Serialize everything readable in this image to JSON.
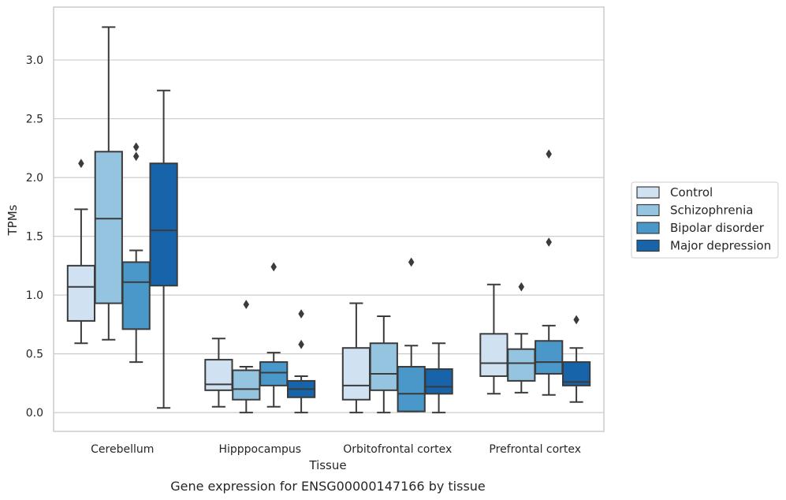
{
  "chart_data": {
    "type": "box",
    "caption": "Gene expression for ENSG00000147166 by tissue",
    "xlabel": "Tissue",
    "ylabel": "TPMs",
    "ylim": [
      -0.16,
      3.45
    ],
    "yticks": [
      0.0,
      0.5,
      1.0,
      1.5,
      2.0,
      2.5,
      3.0
    ],
    "ytick_labels": [
      "0.0",
      "0.5",
      "1.0",
      "1.5",
      "2.0",
      "2.5",
      "3.0"
    ],
    "grid": "horizontal",
    "legend_position": "right",
    "categories": [
      "Cerebellum",
      "Hipppocampus",
      "Orbitofrontal cortex",
      "Prefrontal cortex"
    ],
    "series": [
      {
        "name": "Control",
        "color": "#d0e1f2",
        "boxes": [
          {
            "whislo": 0.59,
            "q1": 0.78,
            "med": 1.07,
            "q3": 1.25,
            "whishi": 1.73,
            "fliers": [
              2.12
            ]
          },
          {
            "whislo": 0.05,
            "q1": 0.19,
            "med": 0.24,
            "q3": 0.45,
            "whishi": 0.63,
            "fliers": []
          },
          {
            "whislo": 0.0,
            "q1": 0.11,
            "med": 0.23,
            "q3": 0.55,
            "whishi": 0.93,
            "fliers": []
          },
          {
            "whislo": 0.16,
            "q1": 0.31,
            "med": 0.42,
            "q3": 0.67,
            "whishi": 1.09,
            "fliers": []
          }
        ]
      },
      {
        "name": "Schizophrenia",
        "color": "#94c4df",
        "boxes": [
          {
            "whislo": 0.62,
            "q1": 0.93,
            "med": 1.65,
            "q3": 2.22,
            "whishi": 3.28,
            "fliers": []
          },
          {
            "whislo": 0.0,
            "q1": 0.11,
            "med": 0.2,
            "q3": 0.36,
            "whishi": 0.39,
            "fliers": [
              0.92
            ]
          },
          {
            "whislo": 0.0,
            "q1": 0.19,
            "med": 0.33,
            "q3": 0.59,
            "whishi": 0.82,
            "fliers": []
          },
          {
            "whislo": 0.17,
            "q1": 0.27,
            "med": 0.42,
            "q3": 0.54,
            "whishi": 0.67,
            "fliers": [
              1.07
            ]
          }
        ]
      },
      {
        "name": "Bipolar disorder",
        "color": "#4a98c9",
        "boxes": [
          {
            "whislo": 0.43,
            "q1": 0.71,
            "med": 1.11,
            "q3": 1.28,
            "whishi": 1.38,
            "fliers": [
              2.18,
              2.26
            ]
          },
          {
            "whislo": 0.05,
            "q1": 0.23,
            "med": 0.34,
            "q3": 0.43,
            "whishi": 0.51,
            "fliers": [
              1.24
            ]
          },
          {
            "whislo": 0.01,
            "q1": 0.01,
            "med": 0.16,
            "q3": 0.39,
            "whishi": 0.57,
            "fliers": [
              1.28
            ]
          },
          {
            "whislo": 0.15,
            "q1": 0.33,
            "med": 0.43,
            "q3": 0.61,
            "whishi": 0.74,
            "fliers": [
              1.45,
              2.2
            ]
          }
        ]
      },
      {
        "name": "Major depression",
        "color": "#1764ab",
        "boxes": [
          {
            "whislo": 0.04,
            "q1": 1.08,
            "med": 1.55,
            "q3": 2.12,
            "whishi": 2.74,
            "fliers": []
          },
          {
            "whislo": 0.0,
            "q1": 0.13,
            "med": 0.2,
            "q3": 0.27,
            "whishi": 0.31,
            "fliers": [
              0.58,
              0.84
            ]
          },
          {
            "whislo": 0.0,
            "q1": 0.16,
            "med": 0.22,
            "q3": 0.37,
            "whishi": 0.59,
            "fliers": []
          },
          {
            "whislo": 0.09,
            "q1": 0.23,
            "med": 0.26,
            "q3": 0.43,
            "whishi": 0.55,
            "fliers": [
              0.79
            ]
          }
        ]
      }
    ]
  }
}
